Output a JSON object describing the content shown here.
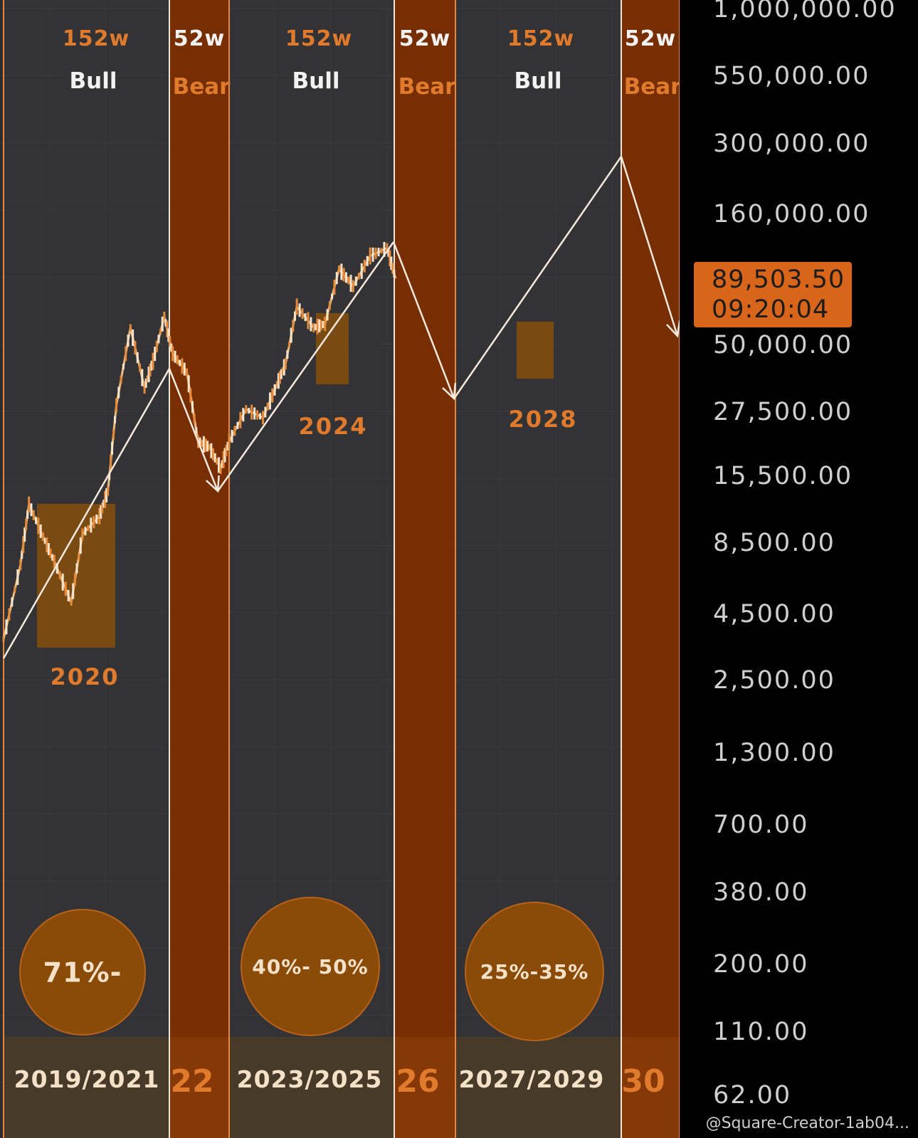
{
  "chart_data": {
    "type": "line",
    "title": "",
    "y_scale": "log",
    "y_ticks": [
      "1,000,000.00",
      "550,000.00",
      "300,000.00",
      "160,000.00",
      "50,000.00",
      "27,500.00",
      "15,500.00",
      "8,500.00",
      "4,500.00",
      "2,500.00",
      "1,300.00",
      "700.00",
      "380.00",
      "200.00",
      "110.00",
      "62.00"
    ],
    "current_price": {
      "value": "89,503.50",
      "countdown": "09:20:04"
    },
    "phases": [
      {
        "type": "bull",
        "weeks_label": "152w",
        "phase_label": "Bull",
        "percent_label": "71%-",
        "cycle_label": "2019/2021"
      },
      {
        "type": "bear",
        "weeks_label": "52w",
        "phase_label": "Bear",
        "year_label": "22"
      },
      {
        "type": "bull",
        "weeks_label": "152w",
        "phase_label": "Bull",
        "percent_label": "40%- 50%",
        "cycle_label": "2023/2025"
      },
      {
        "type": "bear",
        "weeks_label": "52w",
        "phase_label": "Bear",
        "year_label": "26"
      },
      {
        "type": "bull",
        "weeks_label": "152w",
        "phase_label": "Bull",
        "percent_label": "25%-35%",
        "cycle_label": "2027/2029"
      },
      {
        "type": "bear",
        "weeks_label": "52w",
        "phase_label": "Bear",
        "year_label": "30"
      }
    ],
    "halving_labels": [
      "2020",
      "2024",
      "2028"
    ],
    "projection_path": [
      {
        "x": "2019",
        "y": 3000
      },
      {
        "x": "late 2021",
        "y": 38000
      },
      {
        "x": "late 2022",
        "y": 12500
      },
      {
        "x": "late 2025",
        "y": 115000
      },
      {
        "x": "late 2026",
        "y": 28000
      },
      {
        "x": "late 2029",
        "y": 225000
      },
      {
        "x": "late 2030",
        "y": 50000
      }
    ],
    "price_series_approx": [
      [
        2019.0,
        3600
      ],
      [
        2019.3,
        7000
      ],
      [
        2019.45,
        12000
      ],
      [
        2019.7,
        9000
      ],
      [
        2019.9,
        7200
      ],
      [
        2020.2,
        5000
      ],
      [
        2020.4,
        9200
      ],
      [
        2020.7,
        10800
      ],
      [
        2020.85,
        13500
      ],
      [
        2021.0,
        29000
      ],
      [
        2021.25,
        58000
      ],
      [
        2021.5,
        34000
      ],
      [
        2021.65,
        43000
      ],
      [
        2021.85,
        64000
      ],
      [
        2022.0,
        46000
      ],
      [
        2022.25,
        39000
      ],
      [
        2022.45,
        21000
      ],
      [
        2022.65,
        20000
      ],
      [
        2022.85,
        16500
      ],
      [
        2023.0,
        21000
      ],
      [
        2023.3,
        28000
      ],
      [
        2023.6,
        26000
      ],
      [
        2023.85,
        35000
      ],
      [
        2024.0,
        42000
      ],
      [
        2024.2,
        70000
      ],
      [
        2024.5,
        58000
      ],
      [
        2024.7,
        60000
      ],
      [
        2024.95,
        98000
      ],
      [
        2025.2,
        84000
      ],
      [
        2025.5,
        110000
      ],
      [
        2025.8,
        118000
      ],
      [
        2025.95,
        90000
      ]
    ]
  },
  "colors": {
    "bull_band": "#3a3a3c",
    "bear_band": "#7a2e00",
    "accent": "#e07a2c",
    "white_label": "#f2f2f2",
    "price_box": "#d9651a"
  },
  "watermark": "@Square-Creator-1ab04..."
}
